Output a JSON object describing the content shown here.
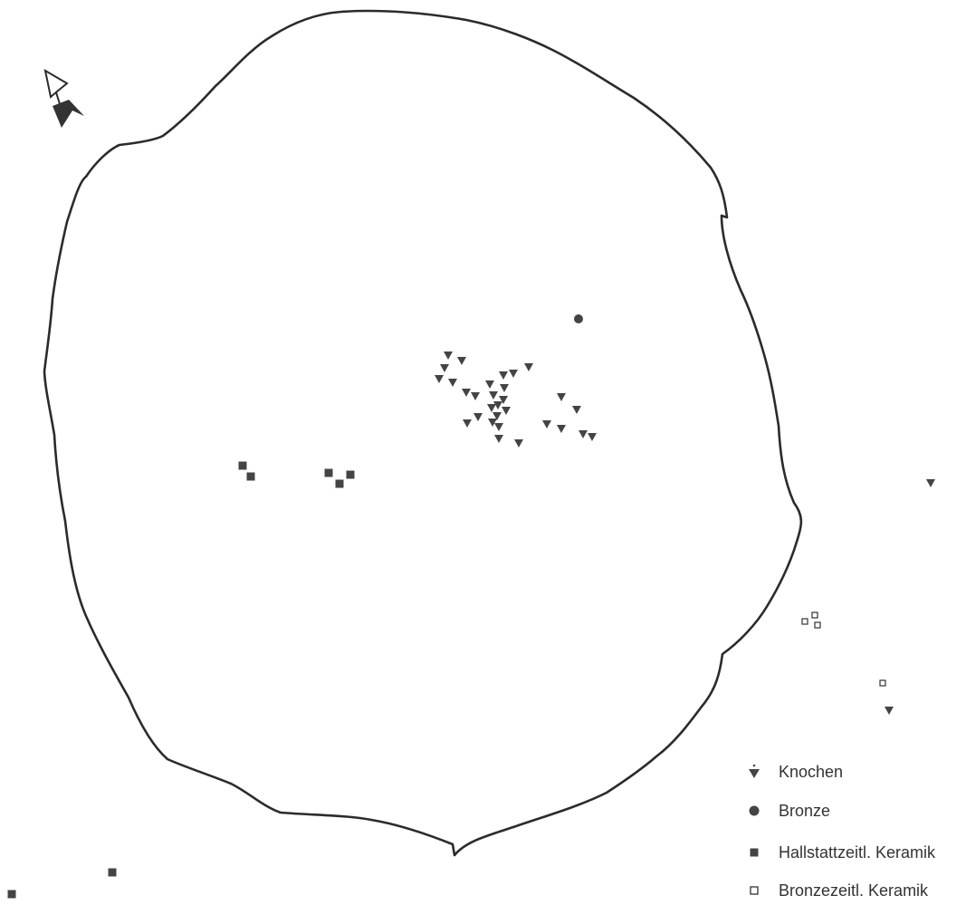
{
  "colors": {
    "outline": "#2b2b2b",
    "marker": "#444444",
    "background": "#ffffff",
    "text": "#333333"
  },
  "map": {
    "north_arrow": "north-arrow-icon",
    "feature": "site-boundary-outline"
  },
  "legend": {
    "items": [
      {
        "symbol": "triangle-down-filled",
        "label": "Knochen"
      },
      {
        "symbol": "circle-filled",
        "label": "Bronze"
      },
      {
        "symbol": "square-filled",
        "label": "Hallstattzeitl. Keramik"
      },
      {
        "symbol": "square-open",
        "label": "Bronzezeitl. Keramik"
      }
    ]
  }
}
